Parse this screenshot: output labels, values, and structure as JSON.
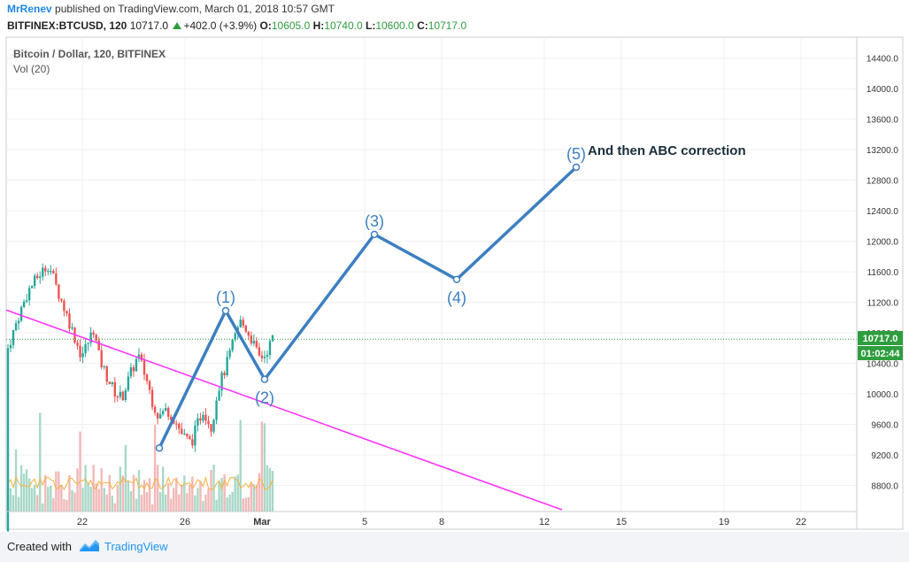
{
  "header": {
    "author": "MrRenev",
    "published_text": "published on TradingView.com, March 01, 2018 10:57 GMT",
    "symbol": "BITFINEX:BTCUSD, 120",
    "last": "10717.0",
    "change": "+402.0 (+3.9%)",
    "o_label": "O:",
    "o_value": "10605.0",
    "h_label": "H:",
    "h_value": "10740.0",
    "l_label": "L:",
    "l_value": "10600.0",
    "c_label": "C:",
    "c_value": "10717.0"
  },
  "legend": {
    "title": "Bitcoin / Dollar, 120, BITFINEX",
    "vol": "Vol (20)"
  },
  "annotation": "And then ABC correction",
  "price_tag": "10717.0",
  "time_tag": "01:02:44",
  "footer": {
    "created_with": "Created with",
    "brand": "TradingView"
  },
  "colors": {
    "up": "#26a69a",
    "down": "#ef5350",
    "wave": "#3d7fc1",
    "trendline": "#ff33ff",
    "price_tag": "#2e9e3e",
    "volume_ma": "#f5b041"
  },
  "chart_data": {
    "type": "candlestick",
    "y_axis_ticks": [
      "14400.0",
      "14000.0",
      "13600.0",
      "13200.0",
      "12800.0",
      "12400.0",
      "12000.0",
      "11600.0",
      "11200.0",
      "10800.0",
      "10400.0",
      "10000.0",
      "9600.0",
      "9200.0",
      "8800.0"
    ],
    "y_tick_values": [
      14400,
      14000,
      13600,
      13200,
      12800,
      12400,
      12000,
      11600,
      11200,
      10800,
      10400,
      10000,
      9600,
      9200,
      8800
    ],
    "x_axis_ticks": [
      "22",
      "26",
      "Mar",
      "5",
      "8",
      "12",
      "15",
      "19",
      "22"
    ],
    "last_price": 10717.0,
    "wave_points": [
      {
        "label": "(1)",
        "date": "2018-02-28",
        "price": 11090
      },
      {
        "label": "(2)",
        "date": "2018-03-01",
        "price": 10190
      },
      {
        "label": "(3)",
        "date": "2018-03-05",
        "price": 12090
      },
      {
        "label": "(4)",
        "date": "2018-03-08",
        "price": 11500
      },
      {
        "label": "(5)",
        "date": "2018-03-12",
        "price": 12970
      }
    ],
    "wave_start": {
      "date": "2018-02-25",
      "price": 9290
    },
    "trendline": {
      "from": {
        "date": "2018-02-19",
        "price": 11470
      },
      "to": {
        "date": "2018-03-14",
        "price": 8480
      }
    },
    "price_path": [
      [
        10600,
        0
      ],
      [
        11000,
        0.5
      ],
      [
        11350,
        1
      ],
      [
        11550,
        1.5
      ],
      [
        11700,
        2
      ],
      [
        11380,
        2.4
      ],
      [
        11100,
        2.8
      ],
      [
        10800,
        3.2
      ],
      [
        10500,
        3.6
      ],
      [
        10650,
        3.9
      ],
      [
        10850,
        4.2
      ],
      [
        10450,
        4.5
      ],
      [
        10200,
        4.9
      ],
      [
        10000,
        5.3
      ],
      [
        9950,
        5.6
      ],
      [
        10250,
        6
      ],
      [
        10500,
        6.4
      ],
      [
        10200,
        6.8
      ],
      [
        9900,
        7.1
      ],
      [
        9700,
        7.4
      ],
      [
        9800,
        7.8
      ],
      [
        9650,
        8.2
      ],
      [
        9450,
        8.6
      ],
      [
        9350,
        9
      ],
      [
        9600,
        9.3
      ],
      [
        9800,
        9.6
      ],
      [
        9550,
        10
      ],
      [
        10050,
        10.3
      ],
      [
        10350,
        10.7
      ],
      [
        10700,
        11.1
      ],
      [
        10950,
        11.4
      ],
      [
        10850,
        11.7
      ],
      [
        10700,
        12
      ],
      [
        10480,
        12.3
      ],
      [
        10500,
        12.6
      ],
      [
        10717,
        13
      ]
    ]
  }
}
